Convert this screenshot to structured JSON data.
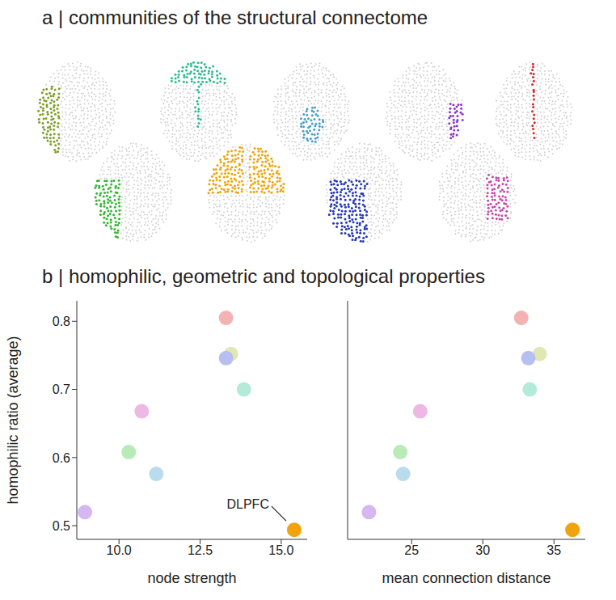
{
  "panel_a": {
    "title": "a | communities of the structural connectome",
    "communities": [
      {
        "color": "#7f9f2a"
      },
      {
        "color": "#2dbd8b"
      },
      {
        "color": "#4a9ec8"
      },
      {
        "color": "#8b35c8"
      },
      {
        "color": "#d62728"
      },
      {
        "color": "#33b533"
      },
      {
        "color": "#f0a30a"
      },
      {
        "color": "#2437b8"
      },
      {
        "color": "#c54aa8"
      }
    ]
  },
  "panel_b": {
    "title": "b | homophilic, geometric and topological properties"
  },
  "chart_data": [
    {
      "type": "scatter",
      "x_label": "node strength",
      "y_label": "homophilic ratio (average)",
      "x": [
        13.3,
        13.45,
        13.3,
        13.85,
        10.7,
        10.3,
        11.15,
        8.95,
        15.4
      ],
      "y": [
        0.805,
        0.752,
        0.746,
        0.7,
        0.668,
        0.608,
        0.576,
        0.52,
        0.494
      ],
      "colors": [
        "#f4b3b3",
        "#dfe8b3",
        "#b7bff0",
        "#b2ecd8",
        "#edb8e3",
        "#b8ebb8",
        "#b8dcee",
        "#d5b8f0",
        "#f0a30a"
      ],
      "xlim": [
        8.7,
        15.8
      ],
      "ylim": [
        0.48,
        0.83
      ],
      "xticks": [
        {
          "value": 10,
          "label": "10.0"
        },
        {
          "value": 12.5,
          "label": "12.5"
        },
        {
          "value": 15,
          "label": "15.0"
        }
      ],
      "yticks": [
        0.5,
        0.6,
        0.7,
        0.8
      ],
      "annotations": [
        {
          "text": "DLPFC",
          "x": 15.4,
          "y": 0.494
        }
      ]
    },
    {
      "type": "scatter",
      "x_label": "mean connection distance",
      "x": [
        32.7,
        34.0,
        33.2,
        33.3,
        25.6,
        24.2,
        24.4,
        22.0,
        36.3
      ],
      "y": [
        0.805,
        0.752,
        0.746,
        0.7,
        0.668,
        0.608,
        0.576,
        0.52,
        0.494
      ],
      "colors": [
        "#f4b3b3",
        "#dfe8b3",
        "#b7bff0",
        "#b2ecd8",
        "#edb8e3",
        "#b8ebb8",
        "#b8dcee",
        "#d5b8f0",
        "#f0a30a"
      ],
      "xlim": [
        20.5,
        37.2
      ],
      "ylim": [
        0.48,
        0.83
      ],
      "xticks": [
        25,
        30,
        35
      ],
      "yticks": [
        0.5,
        0.6,
        0.7,
        0.8
      ],
      "tick_labels": "x"
    }
  ]
}
